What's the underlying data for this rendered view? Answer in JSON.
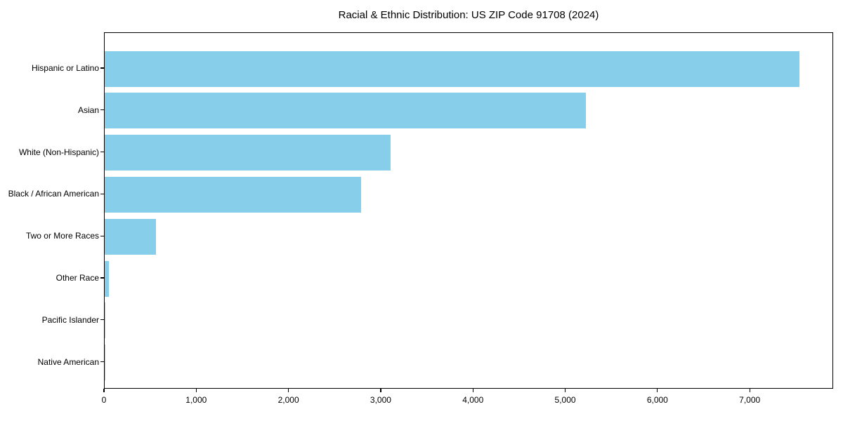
{
  "title": "Racial & Ethnic Distribution: US ZIP Code 91708 (2024)",
  "colors": {
    "bar": "#87CEEB",
    "axis": "#000000",
    "text": "#000000",
    "background": "#ffffff"
  },
  "chart_data": {
    "type": "bar",
    "orientation": "horizontal",
    "title": "Racial & Ethnic Distribution: US ZIP Code 91708 (2024)",
    "categories": [
      "Hispanic or Latino",
      "Asian",
      "White (Non-Hispanic)",
      "Black / African American",
      "Two or More Races",
      "Other Race",
      "Pacific Islander",
      "Native American"
    ],
    "values": [
      7530,
      5220,
      3100,
      2780,
      555,
      45,
      10,
      4
    ],
    "xlabel": "",
    "ylabel": "",
    "xlim": [
      0,
      7905
    ],
    "x_ticks": [
      0,
      1000,
      2000,
      3000,
      4000,
      5000,
      6000,
      7000
    ],
    "x_tick_labels": [
      "0",
      "1,000",
      "2,000",
      "3,000",
      "4,000",
      "5,000",
      "6,000",
      "7,000"
    ],
    "bar_color": "#87CEEB",
    "grid": false,
    "legend_position": "none",
    "categories_order": "top-to-bottom"
  }
}
